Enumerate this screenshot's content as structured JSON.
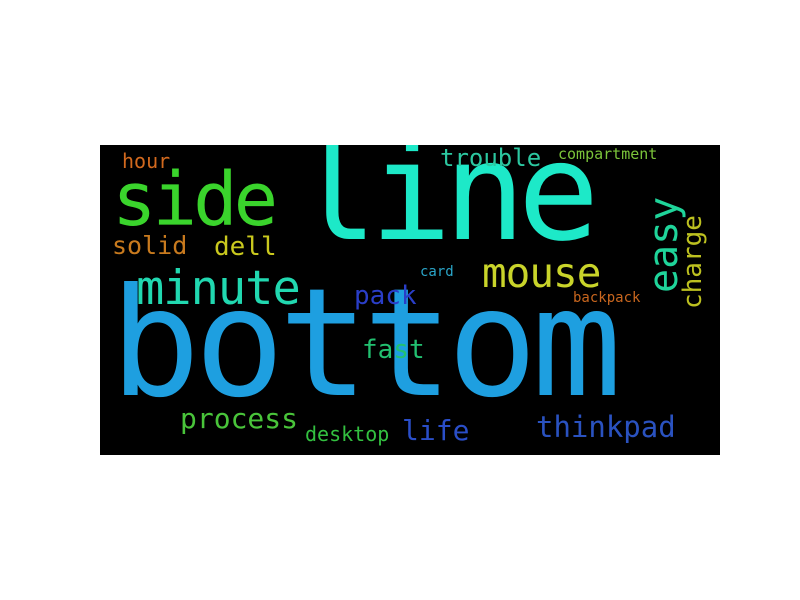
{
  "wordcloud": {
    "words": [
      {
        "text": "line",
        "color": "#1de9c8"
      },
      {
        "text": "bottom",
        "color": "#1e9fe0"
      },
      {
        "text": "side",
        "color": "#3ad42c"
      },
      {
        "text": "minute",
        "color": "#21d8b0"
      },
      {
        "text": "mouse",
        "color": "#c9d42a"
      },
      {
        "text": "easy",
        "color": "#1fd49a"
      },
      {
        "text": "charge",
        "color": "#bcc020"
      },
      {
        "text": "trouble",
        "color": "#2cc7a0"
      },
      {
        "text": "compartment",
        "color": "#7bc43a"
      },
      {
        "text": "hour",
        "color": "#d2691e"
      },
      {
        "text": "solid",
        "color": "#c87a1e"
      },
      {
        "text": "dell",
        "color": "#c9c81e"
      },
      {
        "text": "pack",
        "color": "#2a3ec8"
      },
      {
        "text": "card",
        "color": "#2aa5c8"
      },
      {
        "text": "backpack",
        "color": "#c8661e"
      },
      {
        "text": "fast",
        "color": "#22c070"
      },
      {
        "text": "process",
        "color": "#49c43a"
      },
      {
        "text": "desktop",
        "color": "#33c040"
      },
      {
        "text": "life",
        "color": "#2a4ec8"
      },
      {
        "text": "thinkpad",
        "color": "#2a52c0"
      }
    ]
  }
}
